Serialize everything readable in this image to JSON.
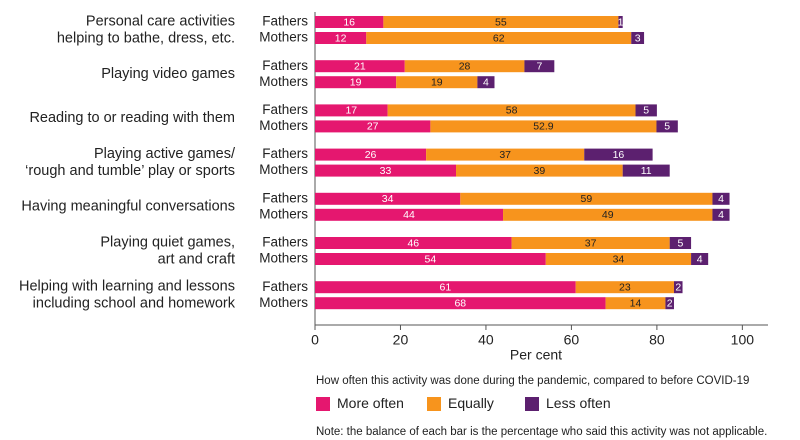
{
  "chart_data": {
    "type": "bar",
    "orientation": "horizontal",
    "stacked": true,
    "categories": [
      [
        "Personal care activities",
        "helping to bathe, dress, etc."
      ],
      [
        "Playing video games"
      ],
      [
        "Reading to or reading with them"
      ],
      [
        "Playing active games/",
        "‘rough and tumble’ play or sports"
      ],
      [
        "Having meaningful conversations"
      ],
      [
        "Playing quiet games,",
        "art and craft"
      ],
      [
        "Helping with learning and lessons",
        "including school and homework"
      ]
    ],
    "groups": [
      "Fathers",
      "Mothers"
    ],
    "series": [
      {
        "name": "More often",
        "color": "#e5176f",
        "values": [
          [
            16,
            12
          ],
          [
            21,
            19
          ],
          [
            17,
            27
          ],
          [
            26,
            33
          ],
          [
            34,
            44
          ],
          [
            46,
            54
          ],
          [
            61,
            68
          ]
        ]
      },
      {
        "name": "Equally",
        "color": "#f7941d",
        "values": [
          [
            55,
            62
          ],
          [
            28,
            19
          ],
          [
            58,
            52.9
          ],
          [
            37,
            39
          ],
          [
            59,
            49
          ],
          [
            37,
            34
          ],
          [
            23,
            14
          ]
        ]
      },
      {
        "name": "Less often",
        "color": "#5c206f",
        "values": [
          [
            1,
            3
          ],
          [
            7,
            4
          ],
          [
            5,
            5
          ],
          [
            16,
            11
          ],
          [
            4,
            4
          ],
          [
            5,
            4
          ],
          [
            2,
            2
          ]
        ]
      }
    ],
    "xlim": [
      0,
      106
    ],
    "xticks": [
      0,
      20,
      40,
      60,
      80,
      100
    ],
    "xlabel": "Per cent",
    "legend_title": "How often this activity was done during the pandemic, compared to before COVID-19",
    "note": "Note: the balance of each bar is the percentage who said this activity was not applicable."
  }
}
